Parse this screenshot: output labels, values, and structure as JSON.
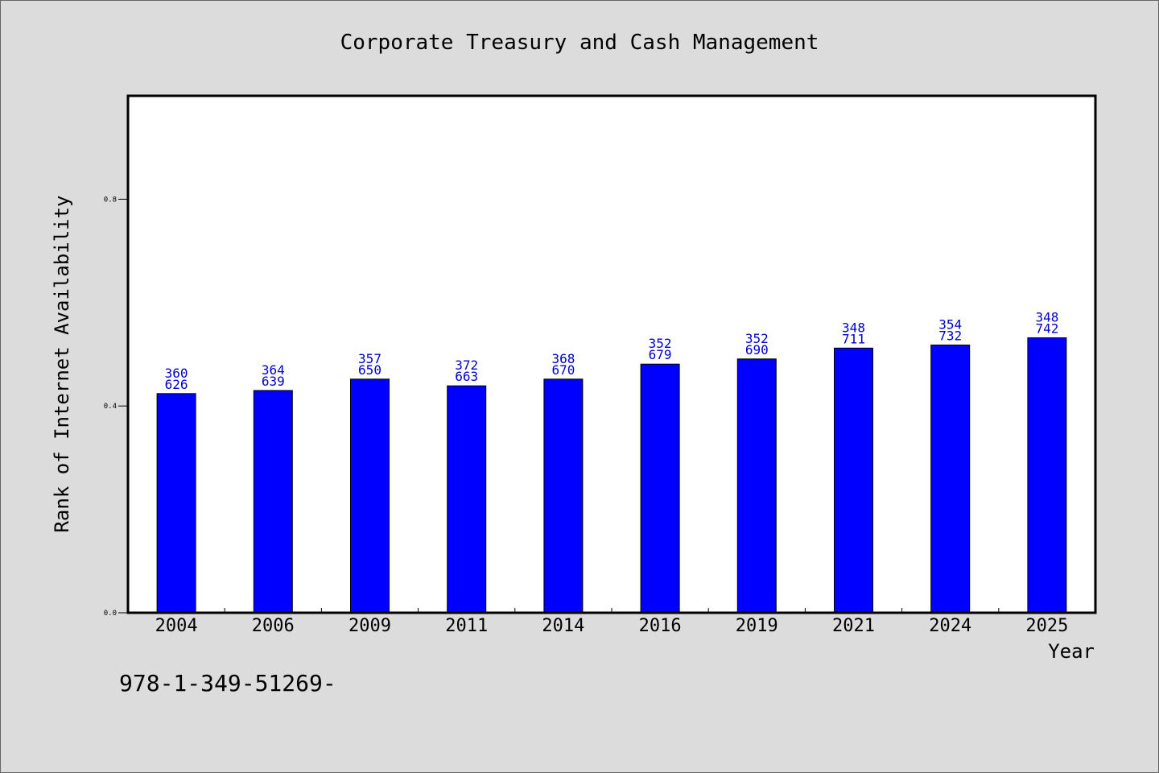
{
  "chart_data": {
    "type": "bar",
    "title": "Corporate Treasury and Cash Management",
    "xlabel": "Year",
    "ylabel": "Rank of Internet Availability",
    "ylim": [
      0,
      1.0
    ],
    "yticks": [
      "0.0",
      "0.4",
      "0.8"
    ],
    "categories": [
      "2004",
      "2006",
      "2009",
      "2011",
      "2014",
      "2016",
      "2019",
      "2021",
      "2024",
      "2025"
    ],
    "values": [
      0.424,
      0.43,
      0.452,
      0.439,
      0.452,
      0.481,
      0.491,
      0.512,
      0.518,
      0.532
    ],
    "label_top": [
      "360",
      "364",
      "357",
      "372",
      "368",
      "352",
      "352",
      "348",
      "354",
      "348"
    ],
    "label_bottom": [
      "626",
      "639",
      "650",
      "663",
      "670",
      "679",
      "690",
      "711",
      "732",
      "742"
    ],
    "bar_color": "#0000ff",
    "label_color": "#0000cc",
    "grid": false
  },
  "footer": {
    "text": "978-1-349-51269-"
  }
}
